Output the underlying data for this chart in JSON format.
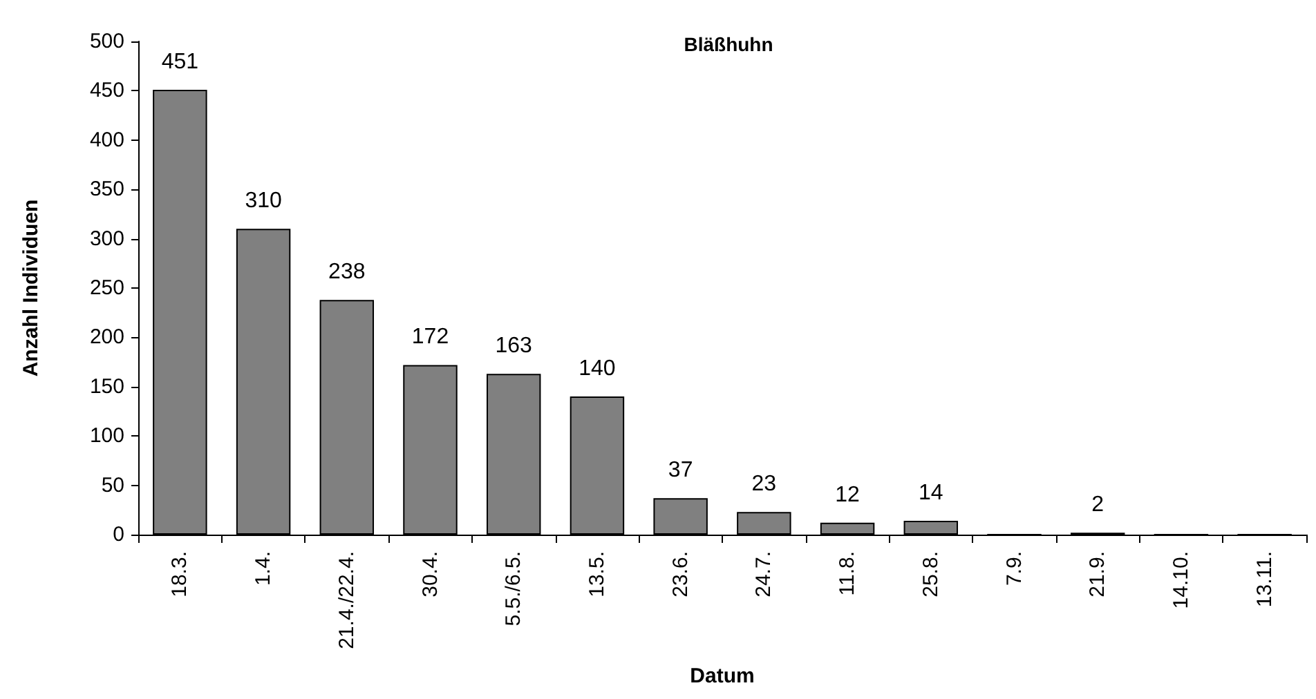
{
  "chart_data": {
    "type": "bar",
    "title": "Bläßhuhn",
    "xlabel": "Datum",
    "ylabel": "Anzahl Individuen",
    "categories": [
      "18.3.",
      "1.4.",
      "21.4./22.4.",
      "30.4.",
      "5.5./6.5.",
      "13.5.",
      "23.6.",
      "24.7.",
      "11.8.",
      "25.8.",
      "7.9.",
      "21.9.",
      "14.10.",
      "13.11."
    ],
    "values": [
      451,
      310,
      238,
      172,
      163,
      140,
      37,
      23,
      12,
      14,
      0,
      2,
      0,
      0
    ],
    "value_labels": [
      "451",
      "310",
      "238",
      "172",
      "163",
      "140",
      "37",
      "23",
      "12",
      "14",
      null,
      "2",
      null,
      null
    ],
    "color": "#808080",
    "ylim": [
      0,
      500
    ],
    "yticks": [
      0,
      50,
      100,
      150,
      200,
      250,
      300,
      350,
      400,
      450,
      500
    ]
  }
}
